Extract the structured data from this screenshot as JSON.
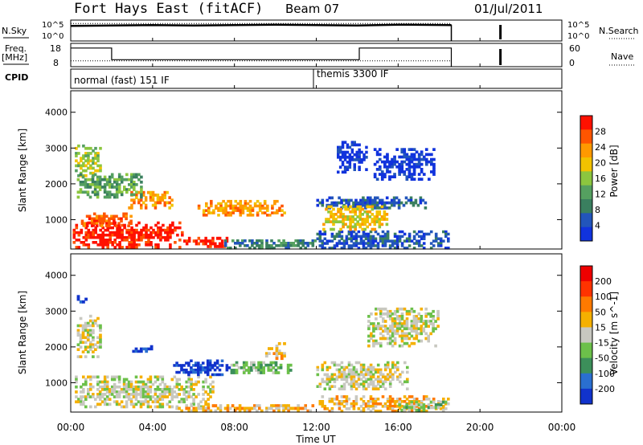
{
  "header": {
    "station": "Fort Hays East (fitACF)",
    "beam": "Beam 07",
    "date": "01/Jul/2011"
  },
  "labels": {
    "nsky": "N.Sky",
    "nsearch": "N.Search",
    "freq": "Freq.",
    "freq_unit": "[MHz]",
    "nave": "Nave",
    "cpid": "CPID"
  },
  "chart_data": [
    {
      "type": "line",
      "panel": "noise",
      "left_ticks": [
        "10^5",
        "10^0"
      ],
      "right_ticks": [
        "10^5",
        "10^0"
      ],
      "series": [
        {
          "name": "N.Sky",
          "x": [
            0,
            2,
            4,
            6,
            8,
            10,
            12,
            14,
            16,
            18.6
          ],
          "values": [
            3.6,
            3.7,
            3.8,
            3.7,
            3.8,
            3.9,
            3.8,
            3.7,
            3.9,
            3.8
          ]
        },
        {
          "name": "N.Search",
          "x": [
            0,
            18.6
          ],
          "values": [
            4.2,
            4.2
          ]
        }
      ],
      "xlim": [
        0,
        24
      ],
      "extra_burst_hour": 21.0
    },
    {
      "type": "line",
      "panel": "frequency",
      "left_ticks": [
        "18",
        "8"
      ],
      "right_ticks": [
        "60",
        "0"
      ],
      "ylim": [
        8,
        18
      ],
      "series": [
        {
          "name": "Freq.",
          "x": [
            0,
            2,
            2,
            14.1,
            14.1,
            18.6
          ],
          "values": [
            16,
            16,
            11,
            11,
            16,
            16
          ]
        },
        {
          "name": "Nave",
          "x": [
            0,
            18.6
          ],
          "values": [
            10.5,
            10.5
          ]
        }
      ]
    },
    {
      "type": "table",
      "panel": "cpid",
      "segments": [
        {
          "start": 0,
          "end": 12.0,
          "label": "normal (fast) 151 IF"
        },
        {
          "start": 12.0,
          "end": 24,
          "label": "themis 3300 IF"
        }
      ]
    },
    {
      "type": "heatmap",
      "panel": "power",
      "ylabel": "Slant Range [km]",
      "yticks": [
        1000,
        2000,
        3000,
        4000
      ],
      "ylim": [
        180,
        4600
      ],
      "colorbar_label": "Power [dB]",
      "colorbar_ticks": [
        "28",
        "24",
        "20",
        "16",
        "12",
        "8",
        "4"
      ],
      "colors": [
        "#1133dd",
        "#2255bb",
        "#3a7f5f",
        "#55a060",
        "#8cc63f",
        "#f2c200",
        "#ff9900",
        "#ff5500",
        "#ff1100"
      ],
      "blobs": [
        {
          "t0": 0.1,
          "t1": 5.5,
          "r0": 200,
          "r1": 950,
          "level": 8
        },
        {
          "t0": 5.5,
          "t1": 7.8,
          "r0": 220,
          "r1": 520,
          "level": 8
        },
        {
          "t0": 0.5,
          "t1": 3.0,
          "r0": 800,
          "r1": 1200,
          "level": 7
        },
        {
          "t0": 2.8,
          "t1": 5.0,
          "r0": 1300,
          "r1": 1800,
          "level": 6
        },
        {
          "t0": 6.2,
          "t1": 10.5,
          "r0": 1100,
          "r1": 1550,
          "level": 6
        },
        {
          "t0": 0.2,
          "t1": 1.5,
          "r0": 2200,
          "r1": 3100,
          "level": 4
        },
        {
          "t0": 0.3,
          "t1": 3.5,
          "r0": 1600,
          "r1": 2300,
          "level": 3
        },
        {
          "t0": 12.0,
          "t1": 17.5,
          "r0": 1300,
          "r1": 1650,
          "level": 1
        },
        {
          "t0": 12.0,
          "t1": 18.5,
          "r0": 180,
          "r1": 700,
          "level": 1
        },
        {
          "t0": 12.3,
          "t1": 15.5,
          "r0": 700,
          "r1": 1400,
          "level": 5
        },
        {
          "t0": 14.8,
          "t1": 17.8,
          "r0": 2100,
          "r1": 3000,
          "level": 0
        },
        {
          "t0": 13.0,
          "t1": 14.5,
          "r0": 2300,
          "r1": 3200,
          "level": 0
        },
        {
          "t0": 7.5,
          "t1": 12.0,
          "r0": 180,
          "r1": 450,
          "level": 2
        }
      ]
    },
    {
      "type": "heatmap",
      "panel": "velocity",
      "ylabel": "Slant Range [km]",
      "yticks": [
        1000,
        2000,
        3000,
        4000
      ],
      "ylim": [
        180,
        4600
      ],
      "colorbar_label": "Velocity [m s^-1]",
      "colorbar_ticks": [
        "200",
        "100",
        "50",
        "15",
        "-15",
        "-50",
        "-100",
        "-200"
      ],
      "colors": [
        "#1133cc",
        "#2a6fd0",
        "#3c8f5a",
        "#6cc04a",
        "#c8c8c0",
        "#f5b000",
        "#ff7a00",
        "#ff3300",
        "#ee0000"
      ],
      "blobs": [
        {
          "t0": 0.2,
          "t1": 7.0,
          "r0": 300,
          "r1": 1200,
          "level": 4
        },
        {
          "t0": 0.3,
          "t1": 1.5,
          "r0": 1700,
          "r1": 2900,
          "level": 4
        },
        {
          "t0": 0.3,
          "t1": 0.8,
          "r0": 3150,
          "r1": 3450,
          "level": 0
        },
        {
          "t0": 5.0,
          "t1": 7.8,
          "r0": 1200,
          "r1": 1650,
          "level": 0
        },
        {
          "t0": 3.0,
          "t1": 4.0,
          "r0": 1850,
          "r1": 2050,
          "level": 0
        },
        {
          "t0": 7.8,
          "t1": 10.8,
          "r0": 1250,
          "r1": 1600,
          "level": 3
        },
        {
          "t0": 9.5,
          "t1": 10.5,
          "r0": 1650,
          "r1": 2200,
          "level": 5
        },
        {
          "t0": 12.0,
          "t1": 18.5,
          "r0": 180,
          "r1": 650,
          "level": 5
        },
        {
          "t0": 12.0,
          "t1": 16.5,
          "r0": 800,
          "r1": 1600,
          "level": 4
        },
        {
          "t0": 14.5,
          "t1": 18.0,
          "r0": 2000,
          "r1": 3100,
          "level": 4
        },
        {
          "t0": 16.0,
          "t1": 18.5,
          "r0": 200,
          "r1": 500,
          "level": 3
        },
        {
          "t0": 5.0,
          "t1": 12.0,
          "r0": 180,
          "r1": 400,
          "level": 5
        }
      ]
    }
  ],
  "xaxis": {
    "label": "Time UT",
    "ticks": [
      "00:00",
      "04:00",
      "08:00",
      "12:00",
      "16:00",
      "20:00",
      "00:00"
    ],
    "xlim": [
      0,
      24
    ]
  }
}
